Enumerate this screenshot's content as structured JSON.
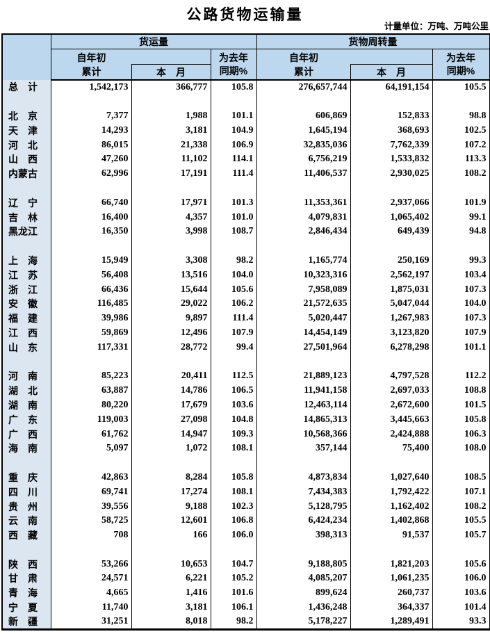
{
  "page_title": "公路货物运输量",
  "unit_note": "计量单位：万吨、万吨公里",
  "colors": {
    "header_bg": "#BDD7EE",
    "province_col_bg": "#DCE6F1",
    "border": "#000000",
    "text": "#000000"
  },
  "table": {
    "column_groups": [
      {
        "label": "货运量"
      },
      {
        "label": "货物周转量"
      }
    ],
    "sub_headers": {
      "cumulative_line1": "自年初",
      "cumulative_line2": "累计",
      "current_month": "本　月",
      "yoy_line1": "为去年",
      "yoy_line2": "同期%"
    },
    "total_row": {
      "name": "总　计",
      "values": [
        "1,542,173",
        "366,777",
        "105.8",
        "276,657,744",
        "64,191,154",
        "105.5"
      ]
    },
    "province_groups": [
      [
        {
          "name": "北　京",
          "values": [
            "7,377",
            "1,988",
            "101.1",
            "606,869",
            "152,833",
            "98.8"
          ]
        },
        {
          "name": "天　津",
          "values": [
            "14,293",
            "3,181",
            "104.9",
            "1,645,194",
            "368,693",
            "102.5"
          ]
        },
        {
          "name": "河　北",
          "values": [
            "86,015",
            "21,338",
            "106.9",
            "32,835,036",
            "7,762,339",
            "107.2"
          ]
        },
        {
          "name": "山　西",
          "values": [
            "47,260",
            "11,102",
            "114.1",
            "6,756,219",
            "1,533,832",
            "113.3"
          ]
        },
        {
          "name": "内蒙古",
          "values": [
            "62,996",
            "17,191",
            "111.4",
            "11,406,537",
            "2,930,025",
            "108.2"
          ]
        }
      ],
      [
        {
          "name": "辽　宁",
          "values": [
            "66,740",
            "17,971",
            "101.3",
            "11,353,361",
            "2,937,066",
            "101.9"
          ]
        },
        {
          "name": "吉　林",
          "values": [
            "16,400",
            "4,357",
            "101.0",
            "4,079,831",
            "1,065,402",
            "99.1"
          ]
        },
        {
          "name": "黑龙江",
          "values": [
            "16,350",
            "3,998",
            "108.7",
            "2,846,434",
            "649,439",
            "94.8"
          ]
        }
      ],
      [
        {
          "name": "上　海",
          "values": [
            "15,949",
            "3,308",
            "98.2",
            "1,165,774",
            "250,169",
            "99.3"
          ]
        },
        {
          "name": "江　苏",
          "values": [
            "56,408",
            "13,516",
            "104.0",
            "10,323,316",
            "2,562,197",
            "103.4"
          ]
        },
        {
          "name": "浙　江",
          "values": [
            "66,436",
            "15,644",
            "105.6",
            "7,958,089",
            "1,875,031",
            "107.3"
          ]
        },
        {
          "name": "安　徽",
          "values": [
            "116,485",
            "29,022",
            "106.2",
            "21,572,635",
            "5,047,044",
            "104.0"
          ]
        },
        {
          "name": "福　建",
          "values": [
            "39,986",
            "9,897",
            "111.4",
            "5,020,447",
            "1,267,983",
            "107.3"
          ]
        },
        {
          "name": "江　西",
          "values": [
            "59,869",
            "12,496",
            "107.9",
            "14,454,149",
            "3,123,820",
            "107.9"
          ]
        },
        {
          "name": "山　东",
          "values": [
            "117,331",
            "28,772",
            "99.4",
            "27,501,964",
            "6,278,298",
            "101.1"
          ]
        }
      ],
      [
        {
          "name": "河　南",
          "values": [
            "85,223",
            "20,411",
            "112.5",
            "21,889,123",
            "4,797,528",
            "112.2"
          ]
        },
        {
          "name": "湖　北",
          "values": [
            "63,887",
            "14,786",
            "106.5",
            "11,941,158",
            "2,697,033",
            "108.8"
          ]
        },
        {
          "name": "湖　南",
          "values": [
            "80,220",
            "17,679",
            "103.6",
            "12,463,114",
            "2,672,600",
            "101.5"
          ]
        },
        {
          "name": "广　东",
          "values": [
            "119,003",
            "27,098",
            "104.8",
            "14,865,313",
            "3,445,663",
            "105.8"
          ]
        },
        {
          "name": "广　西",
          "values": [
            "61,762",
            "14,947",
            "109.3",
            "10,568,366",
            "2,424,888",
            "106.3"
          ]
        },
        {
          "name": "海　南",
          "values": [
            "5,097",
            "1,072",
            "108.1",
            "357,144",
            "75,400",
            "108.0"
          ]
        }
      ],
      [
        {
          "name": "重　庆",
          "values": [
            "42,863",
            "8,284",
            "105.8",
            "4,873,834",
            "1,027,640",
            "108.5"
          ]
        },
        {
          "name": "四　川",
          "values": [
            "69,741",
            "17,274",
            "108.1",
            "7,434,383",
            "1,792,422",
            "107.1"
          ]
        },
        {
          "name": "贵　州",
          "values": [
            "39,556",
            "9,188",
            "102.3",
            "5,128,795",
            "1,162,402",
            "108.2"
          ]
        },
        {
          "name": "云　南",
          "values": [
            "58,725",
            "12,601",
            "106.8",
            "6,424,234",
            "1,402,868",
            "105.5"
          ]
        },
        {
          "name": "西　藏",
          "values": [
            "708",
            "166",
            "106.0",
            "398,313",
            "91,537",
            "105.7"
          ]
        }
      ],
      [
        {
          "name": "陕　西",
          "values": [
            "53,266",
            "10,653",
            "104.7",
            "9,188,805",
            "1,821,203",
            "105.6"
          ]
        },
        {
          "name": "甘　肃",
          "values": [
            "24,571",
            "6,221",
            "105.2",
            "4,085,207",
            "1,061,235",
            "106.0"
          ]
        },
        {
          "name": "青　海",
          "values": [
            "4,665",
            "1,416",
            "101.6",
            "899,624",
            "260,737",
            "103.6"
          ]
        },
        {
          "name": "宁　夏",
          "values": [
            "11,740",
            "3,181",
            "106.1",
            "1,436,248",
            "364,337",
            "101.4"
          ]
        },
        {
          "name": "新　疆",
          "values": [
            "31,251",
            "8,018",
            "98.2",
            "5,178,227",
            "1,289,491",
            "93.3"
          ]
        }
      ]
    ]
  }
}
